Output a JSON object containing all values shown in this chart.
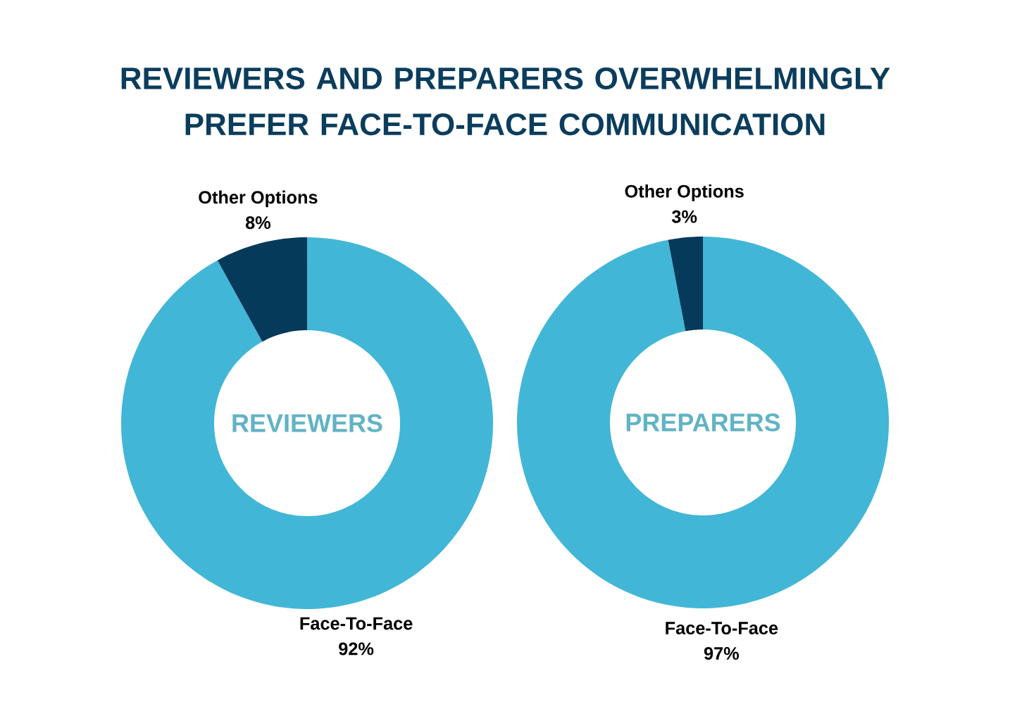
{
  "chart_data": [
    {
      "type": "donut",
      "title": "REVIEWERS AND PREPARERS OVERWHELMINGLY PREFER FACE-TO-FACE COMMUNICATION",
      "categories": [
        "Face-To-Face",
        "Other Options"
      ],
      "values": [
        92,
        8
      ],
      "colors": [
        "#42b6d6",
        "#053a5a"
      ],
      "value_labels": [
        "92%",
        "8%"
      ],
      "annotations": [
        "REVIEWERS"
      ]
    },
    {
      "type": "donut",
      "categories": [
        "Face-To-Face",
        "Other Options"
      ],
      "values": [
        97,
        3
      ],
      "colors": [
        "#42b6d6",
        "#053a5a"
      ],
      "value_labels": [
        "97%",
        "3%"
      ],
      "annotations": [
        "PREPARERS"
      ]
    }
  ]
}
